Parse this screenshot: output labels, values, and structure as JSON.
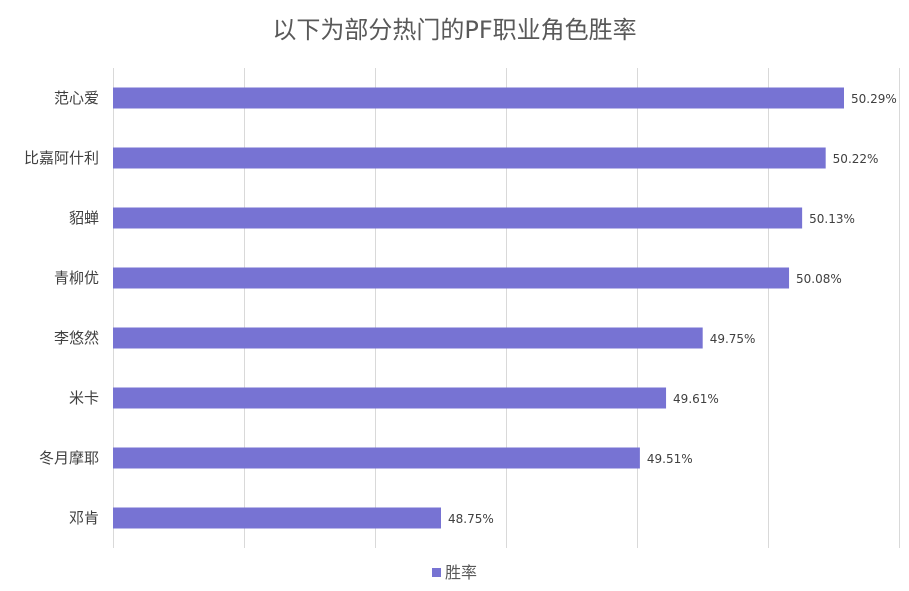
{
  "chart_data": {
    "type": "bar",
    "orientation": "horizontal",
    "title": "以下为部分热门的PF职业角色胜率",
    "categories": [
      "范心爱",
      "比嘉阿什利",
      "貂蝉",
      "青柳优",
      "李悠然",
      "米卡",
      "冬月摩耶",
      "邓肯"
    ],
    "series": [
      {
        "name": "胜率",
        "values": [
          50.29,
          50.22,
          50.13,
          50.08,
          49.75,
          49.61,
          49.51,
          48.75
        ],
        "labels": [
          "50.29%",
          "50.22%",
          "50.13%",
          "50.08%",
          "49.75%",
          "49.61%",
          "49.51%",
          "48.75%"
        ],
        "color": "#7773d3"
      }
    ],
    "grid": true,
    "legend_position": "bottom"
  }
}
